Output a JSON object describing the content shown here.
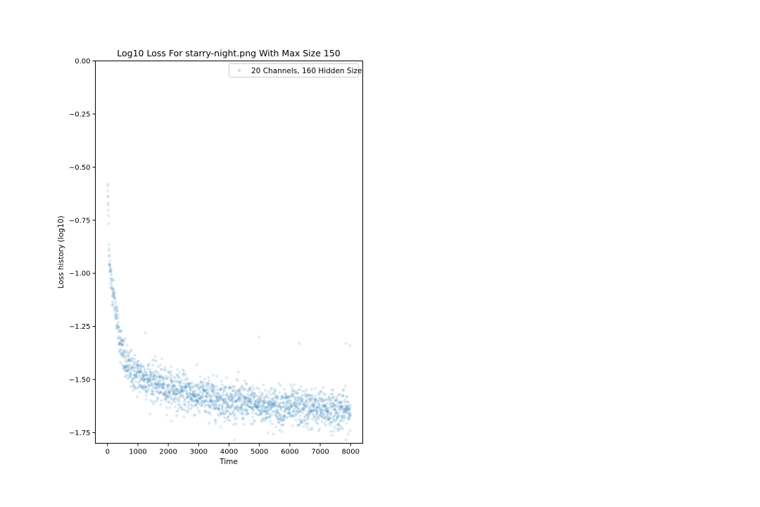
{
  "chart_data": {
    "type": "scatter",
    "title": "Log10 Loss For starry-night.png With Max Size 150",
    "xlabel": "Time",
    "ylabel": "Loss history (log10)",
    "xlim": [
      -400,
      8400
    ],
    "ylim": [
      -1.8,
      0.0
    ],
    "xticks": [
      0,
      1000,
      2000,
      3000,
      4000,
      5000,
      6000,
      7000,
      8000
    ],
    "yticks": [
      0.0,
      -0.25,
      -0.5,
      -0.75,
      -1.0,
      -1.25,
      -1.5,
      -1.75
    ],
    "xtick_labels": [
      "0",
      "1000",
      "2000",
      "3000",
      "4000",
      "5000",
      "6000",
      "7000",
      "8000"
    ],
    "ytick_labels": [
      "0.00",
      "−0.25",
      "−0.50",
      "−0.75",
      "−1.00",
      "−1.25",
      "−1.50",
      "−1.75"
    ],
    "grid": false,
    "legend": {
      "position": "top-right",
      "entries": [
        "20 Channels, 160 Hidden Size"
      ]
    },
    "series": [
      {
        "name": "20 Channels, 160 Hidden Size",
        "color": "#1f77b4",
        "alpha": 0.15,
        "n_points": 8000,
        "trend": {
          "x": [
            0,
            25,
            50,
            100,
            150,
            200,
            250,
            300,
            350,
            400,
            500,
            600,
            800,
            1000,
            1500,
            2000,
            2500,
            3000,
            4000,
            5000,
            6000,
            7000,
            8000
          ],
          "y": [
            -0.6,
            -0.68,
            -0.9,
            -1.02,
            -1.06,
            -1.1,
            -1.15,
            -1.2,
            -1.26,
            -1.31,
            -1.38,
            -1.43,
            -1.46,
            -1.48,
            -1.51,
            -1.54,
            -1.56,
            -1.58,
            -1.6,
            -1.62,
            -1.63,
            -1.64,
            -1.65
          ]
        },
        "spread": 0.045,
        "outliers": [
          {
            "x": 4980,
            "y": -1.3
          },
          {
            "x": 6310,
            "y": -1.33
          },
          {
            "x": 7850,
            "y": -1.33
          },
          {
            "x": 7980,
            "y": -1.34
          },
          {
            "x": 1250,
            "y": -1.28
          }
        ]
      }
    ]
  }
}
